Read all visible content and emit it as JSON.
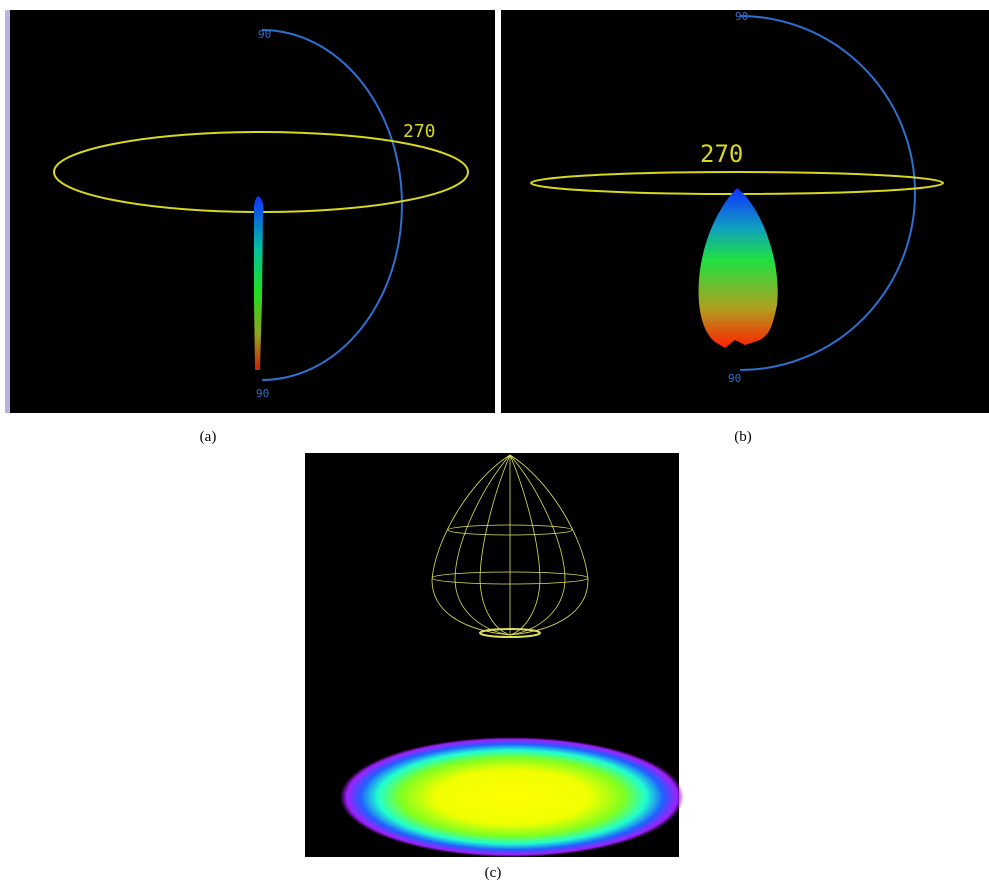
{
  "panels": [
    {
      "caption": "(a)",
      "top_label": "90",
      "ring_label": "270",
      "bottom_label": "90"
    },
    {
      "caption": "(b)",
      "top_label": "90",
      "ring_label": "270",
      "bottom_label": "90"
    },
    {
      "caption": "(c)"
    }
  ]
}
